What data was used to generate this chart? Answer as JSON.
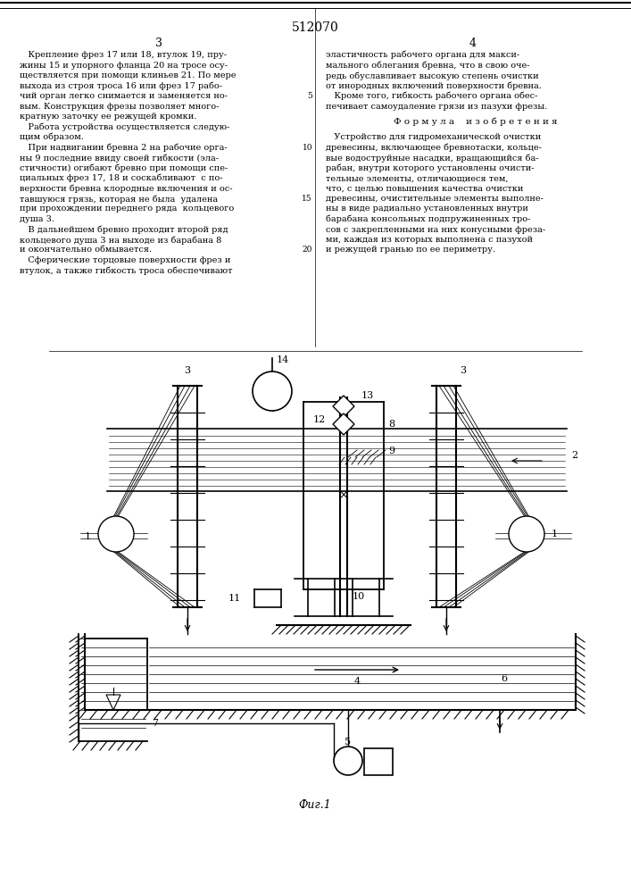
{
  "patent_number": "512070",
  "col_left": "3",
  "col_right": "4",
  "fig_caption": "Фиг.1",
  "bg_color": "#ffffff",
  "line_color": "#000000",
  "text_color": "#000000",
  "left_text": [
    "   Крепление фрез 17 или 18, втулок 19, пру-",
    "жины 15 и упорного фланца 20 на тросе осу-",
    "ществляется при помощи клиньев 21. По мере",
    "выхода из строя троса 16 или фрез 17 рабо-",
    "чий орган легко снимается и заменяется но-",
    "вым. Конструкция фрезы позволяет много-",
    "кратную заточку ее режущей кромки.",
    "   Работа устройства осуществляется следую-",
    "щим образом.",
    "   При надвигании бревна 2 на рабочие орга-",
    "ны 9 последние ввиду своей гибкости (эла-",
    "стичности) огибают бревно при помощи спе-",
    "циальных фрез 17, 18 и соскабливают  с по-",
    "верхности бревна клородные включения и ос-",
    "тавшуюся грязь, которая не была  удалена",
    "при прохождении переднего ряда  кольцевого",
    "душа 3.",
    "   В дальнейшем бревно проходит второй ряд",
    "кольцевого душа 3 на выходе из барабана 8",
    "и окончательно обмывается.",
    "   Сферические торцовые поверхности фрез и",
    "втулок, а также гибкость троса обеспечивают"
  ],
  "right_text_para1": [
    "эластичность рабочего органа для макси-",
    "мального облегания бревна, что в свою оче-",
    "редь обуславливает высокую степень очистки",
    "от инородных включений поверхности бревна.",
    "   Кроме того, гибкость рабочего органа обес-",
    "печивает самоудаление грязи из пазухи фрезы."
  ],
  "formula_header": "Ф о р м у л а    и з о б р е т е н и я",
  "right_text_para2": [
    "   Устройство для гидромеханической очистки",
    "древесины, включающее бревнотаски, кольце-",
    "вые водоструйные насадки, вращающийся ба-",
    "рабан, внутри которого установлены очисти-",
    "тельные элементы, отличающиеся тем,",
    "что, с целью повышения качества очистки",
    "древесины, очистительные элементы выполне-",
    "ны в виде радиально установленных внутри",
    "барабана консольных подпружиненных тро-",
    "сов с закрепленными на них конусными фреза-",
    "ми, каждая из которых выполнена с пазухой",
    "и режущей гранью по ее периметру."
  ],
  "line_numbers_left": [
    "5",
    "10",
    "15",
    "20"
  ],
  "line_numbers_right": [
    "5"
  ]
}
